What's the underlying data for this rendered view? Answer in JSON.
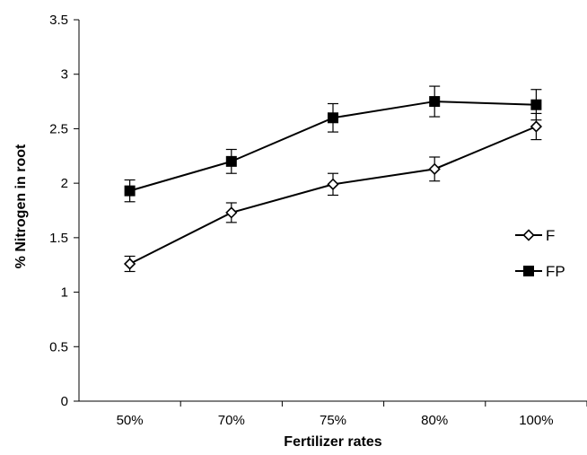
{
  "chart_data": {
    "type": "line",
    "title": "",
    "xlabel": "Fertilizer rates",
    "ylabel": "% Nitrogen in root",
    "categories": [
      "50%",
      "70%",
      "75%",
      "80%",
      "100%"
    ],
    "ylim": [
      0,
      3.5
    ],
    "yticks": [
      0,
      0.5,
      1,
      1.5,
      2,
      2.5,
      3,
      3.5
    ],
    "ytick_labels": [
      "0",
      "0.5",
      "1",
      "1.5",
      "2",
      "2.5",
      "3",
      "3.5"
    ],
    "grid": false,
    "legend_position": "right",
    "series": [
      {
        "name": "F",
        "marker": "open-diamond",
        "color": "#000000",
        "values": [
          1.26,
          1.73,
          1.99,
          2.13,
          2.52
        ],
        "errors": [
          0.07,
          0.09,
          0.1,
          0.11,
          0.12
        ]
      },
      {
        "name": "FP",
        "marker": "filled-square",
        "color": "#000000",
        "values": [
          1.93,
          2.2,
          2.6,
          2.75,
          2.72
        ],
        "errors": [
          0.1,
          0.11,
          0.13,
          0.14,
          0.14
        ]
      }
    ]
  }
}
